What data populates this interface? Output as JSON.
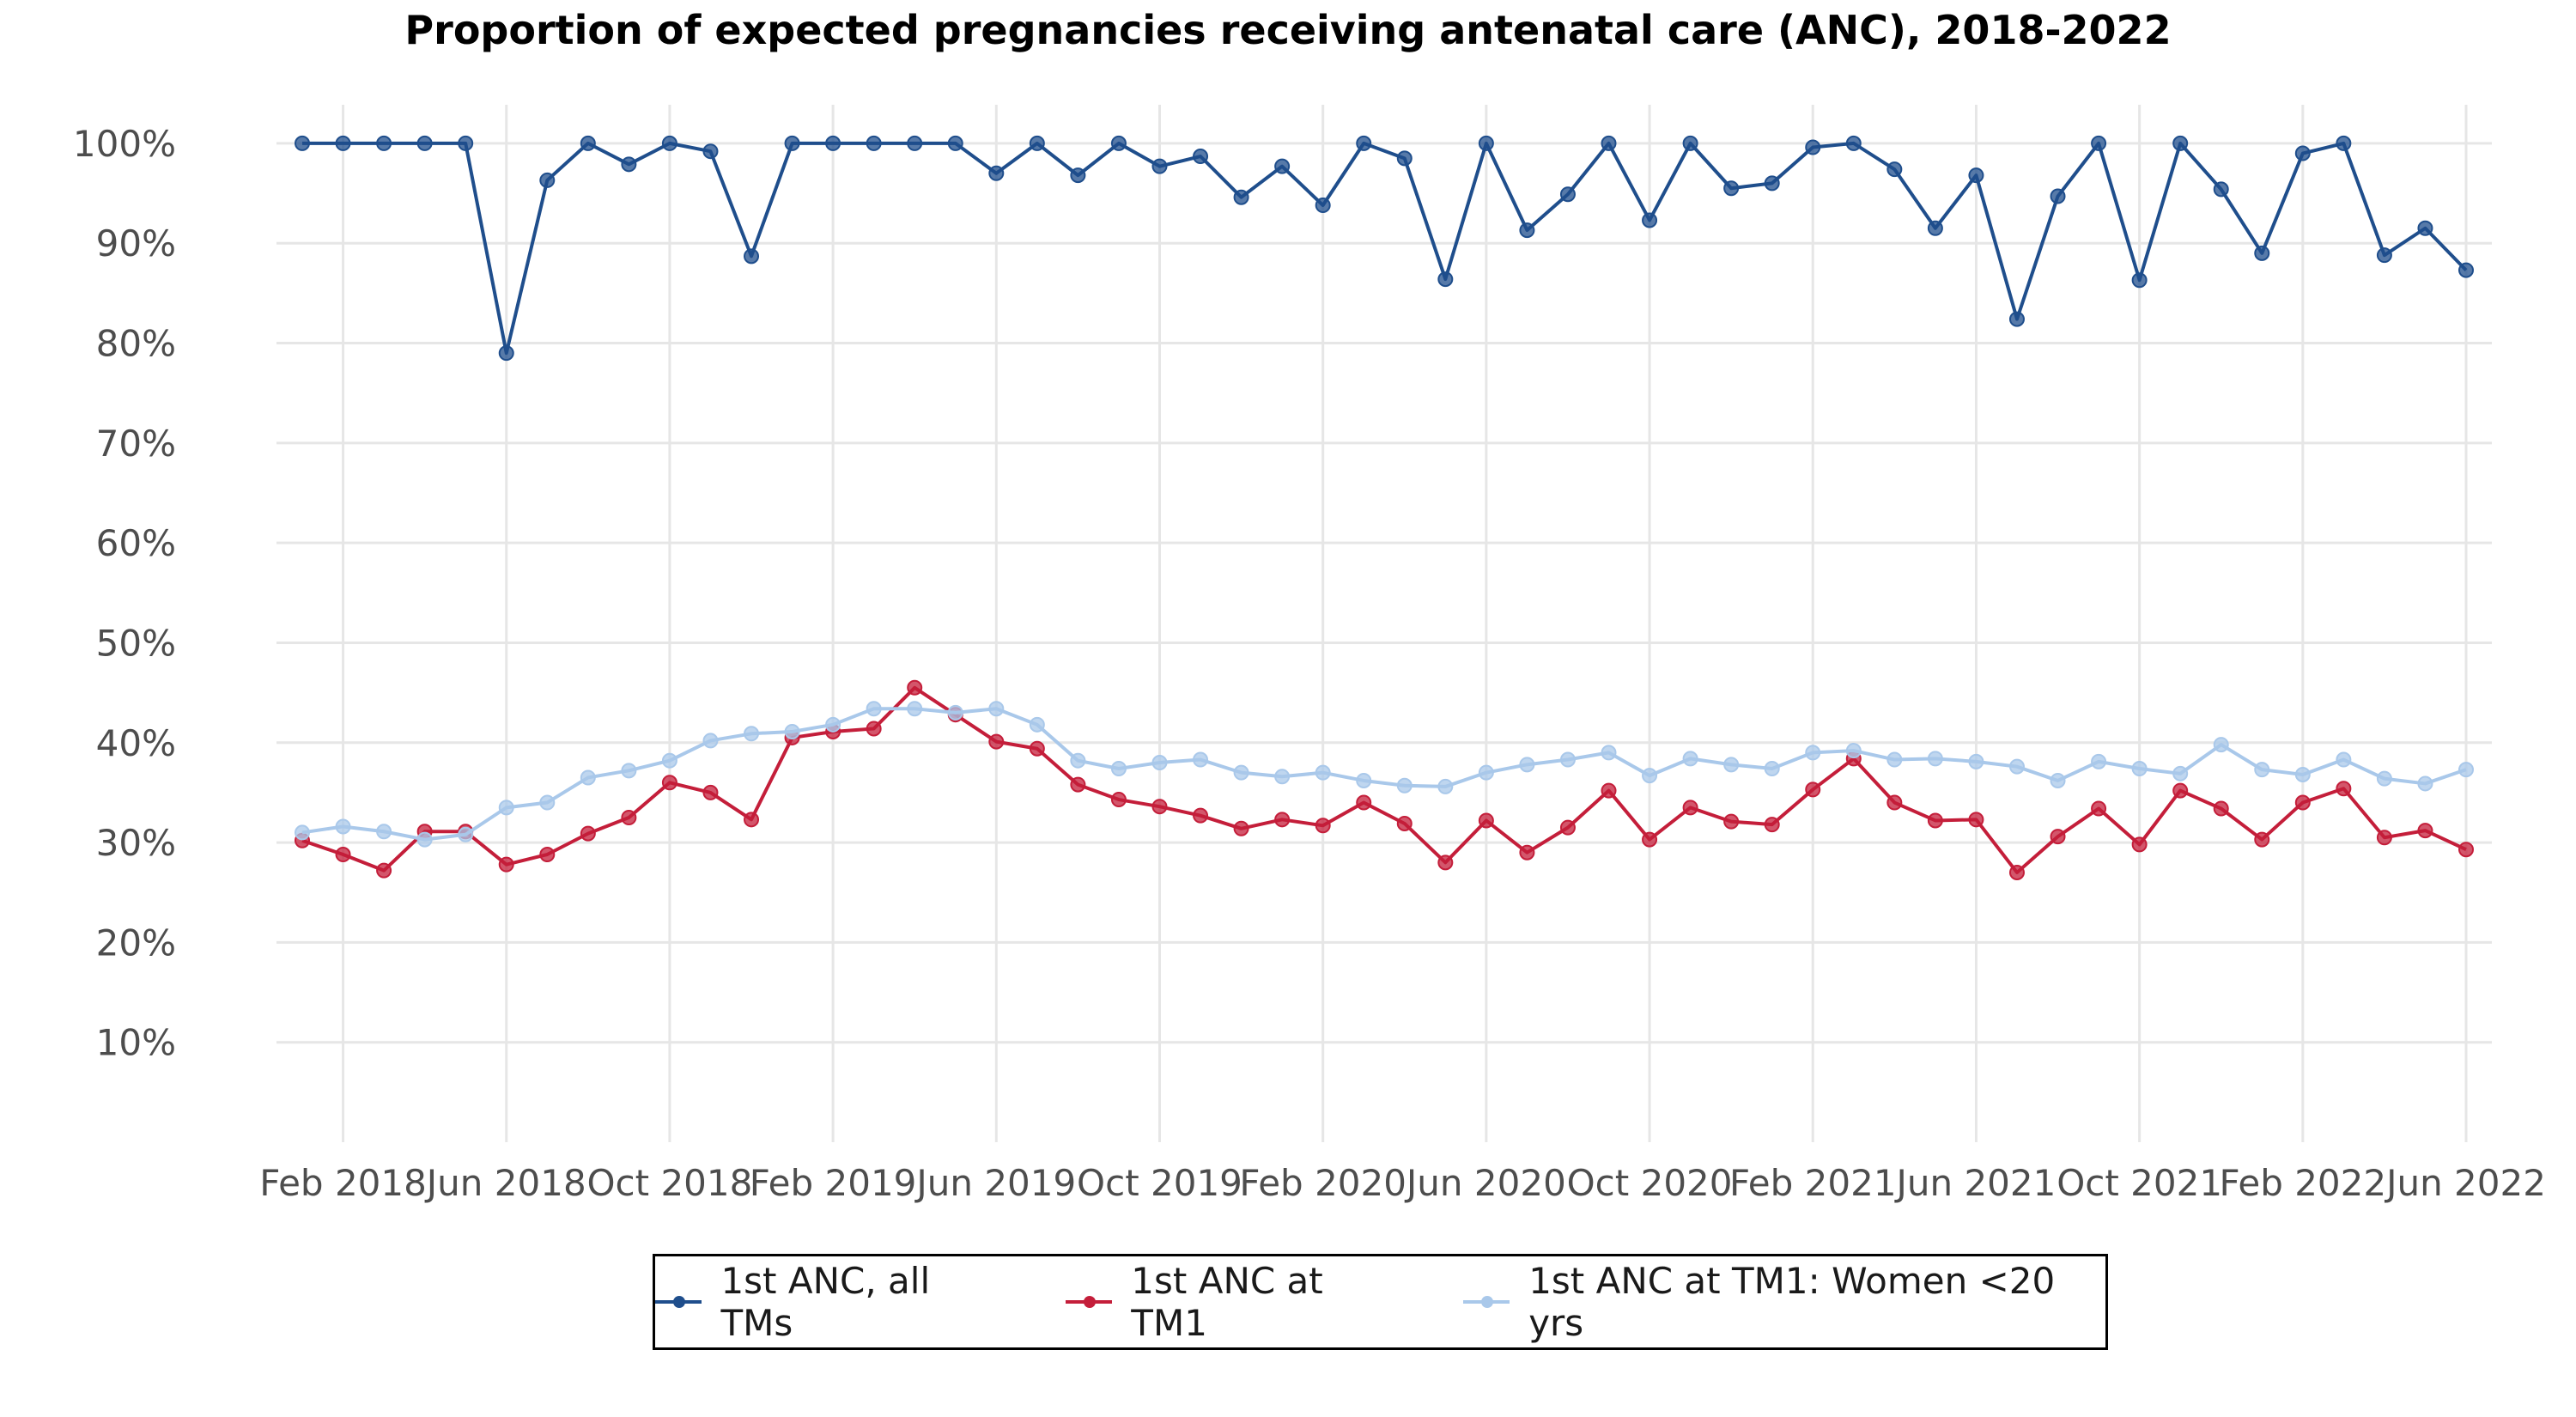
{
  "chart_data": {
    "type": "line",
    "title": "Proportion of expected pregnancies receiving antenatal care (ANC), 2018-2022",
    "xlabel": "",
    "ylabel": "",
    "ylim": [
      0,
      103
    ],
    "y_ticks": [
      10,
      20,
      30,
      40,
      50,
      60,
      70,
      80,
      90,
      100
    ],
    "y_tick_labels": [
      "10%",
      "20%",
      "30%",
      "40%",
      "50%",
      "60%",
      "70%",
      "80%",
      "90%",
      "100%"
    ],
    "x_tick_labels": [
      "Feb 2018",
      "Jun 2018",
      "Oct 2018",
      "Feb 2019",
      "Jun 2019",
      "Oct 2019",
      "Feb 2020",
      "Jun 2020",
      "Oct 2020",
      "Feb 2021",
      "Jun 2021",
      "Oct 2021",
      "Feb 2022",
      "Jun 2022"
    ],
    "x_tick_months": [
      1,
      5,
      9,
      13,
      17,
      21,
      25,
      29,
      33,
      37,
      41,
      45,
      49,
      53
    ],
    "x_month_range": [
      0,
      53
    ],
    "grid": true,
    "legend_position": "bottom",
    "series": [
      {
        "name": "1st ANC, all TMs",
        "color": "#1f4e8c",
        "values": [
          100,
          100,
          100,
          100,
          100,
          79,
          96.3,
          100,
          97.9,
          100,
          99.2,
          88.7,
          100,
          100,
          100,
          100,
          100,
          97,
          100,
          96.8,
          100,
          97.7,
          98.7,
          94.6,
          97.7,
          93.8,
          100,
          98.5,
          86.4,
          100,
          91.3,
          94.9,
          100,
          92.3,
          100,
          95.5,
          96,
          99.6,
          100,
          97.4,
          91.5,
          96.8,
          82.4,
          94.7,
          100,
          86.3,
          100,
          95.4,
          89,
          99,
          100,
          88.8,
          91.5,
          87.3
        ]
      },
      {
        "name": "1st ANC at TM1",
        "color": "#c41e3a",
        "values": [
          30.2,
          28.8,
          27.2,
          31.1,
          31.1,
          27.8,
          28.8,
          30.9,
          32.5,
          36,
          35,
          32.3,
          40.5,
          41.1,
          41.4,
          45.5,
          42.8,
          40.1,
          39.4,
          35.8,
          34.3,
          33.6,
          32.7,
          31.4,
          32.3,
          31.7,
          34,
          31.9,
          28,
          32.2,
          29,
          31.5,
          35.2,
          30.3,
          33.5,
          32.1,
          31.8,
          35.3,
          38.4,
          34,
          32.2,
          32.3,
          27,
          30.6,
          33.4,
          29.8,
          35.2,
          33.4,
          30.3,
          34,
          35.4,
          30.5,
          31.2,
          29.3
        ]
      },
      {
        "name": "1st ANC at TM1: Women <20 yrs",
        "color": "#a9c8ea",
        "values": [
          31,
          31.6,
          31.1,
          30.3,
          30.8,
          33.5,
          34,
          36.5,
          37.2,
          38.2,
          40.2,
          40.9,
          41.1,
          41.8,
          43.4,
          43.4,
          43,
          43.4,
          41.8,
          38.2,
          37.4,
          38,
          38.3,
          37,
          36.6,
          37,
          36.2,
          35.7,
          35.6,
          37,
          37.8,
          38.3,
          39,
          36.7,
          38.4,
          37.8,
          37.4,
          39,
          39.2,
          38.3,
          38.4,
          38.1,
          37.6,
          36.2,
          38.1,
          37.4,
          36.9,
          39.8,
          37.3,
          36.8,
          38.3,
          36.4,
          35.9,
          37.3
        ]
      }
    ]
  }
}
